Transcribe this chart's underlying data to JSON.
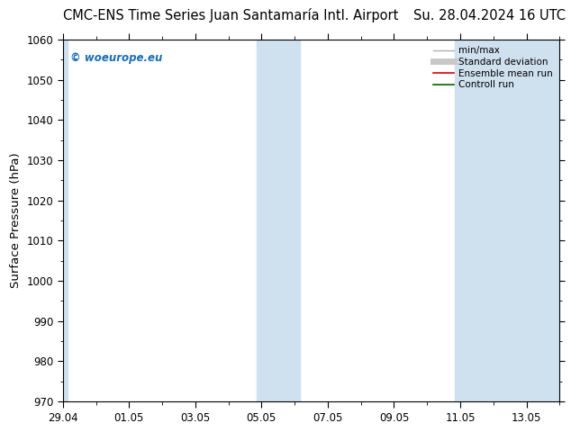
{
  "title_left": "CMC-ENS Time Series Juan Santamaría Intl. Airport",
  "title_right": "Su. 28.04.2024 16 UTC",
  "ylabel": "Surface Pressure (hPa)",
  "ylim": [
    970,
    1060
  ],
  "yticks": [
    970,
    980,
    990,
    1000,
    1010,
    1020,
    1030,
    1040,
    1050,
    1060
  ],
  "xtick_labels": [
    "29.04",
    "01.05",
    "03.05",
    "05.05",
    "07.05",
    "09.05",
    "11.05",
    "13.05"
  ],
  "xtick_days": [
    0,
    2,
    4,
    6,
    8,
    10,
    12,
    14
  ],
  "xlim": [
    0,
    15
  ],
  "shaded_bands": [
    {
      "start_day": 5.85,
      "end_day": 7.15
    },
    {
      "start_day": 11.85,
      "end_day": 15.0
    }
  ],
  "left_band": {
    "start_day": 0,
    "end_day": 0.15
  },
  "bg_color": "#ffffff",
  "band_color": "#cfe0ef",
  "watermark_text": "© woeurope.eu",
  "watermark_color": "#1a6db5",
  "legend_entries": [
    {
      "label": "min/max",
      "color": "#b0b0b0",
      "lw": 1.0,
      "ls": "-"
    },
    {
      "label": "Standard deviation",
      "color": "#c8c8c8",
      "lw": 5,
      "ls": "-"
    },
    {
      "label": "Ensemble mean run",
      "color": "#dd0000",
      "lw": 1.2,
      "ls": "-"
    },
    {
      "label": "Controll run",
      "color": "#006400",
      "lw": 1.2,
      "ls": "-"
    }
  ],
  "title_fontsize": 10.5,
  "tick_fontsize": 8.5,
  "ylabel_fontsize": 9.5,
  "legend_fontsize": 7.5
}
